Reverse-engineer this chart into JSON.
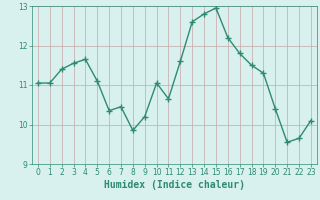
{
  "x": [
    0,
    1,
    2,
    3,
    4,
    5,
    6,
    7,
    8,
    9,
    10,
    11,
    12,
    13,
    14,
    15,
    16,
    17,
    18,
    19,
    20,
    21,
    22,
    23
  ],
  "y": [
    11.05,
    11.05,
    11.4,
    11.55,
    11.65,
    11.1,
    10.35,
    10.45,
    9.85,
    10.2,
    11.05,
    10.65,
    11.6,
    12.6,
    12.8,
    12.95,
    12.2,
    11.8,
    11.5,
    11.3,
    10.4,
    9.55,
    9.65,
    10.1
  ],
  "line_color": "#2e8b72",
  "marker": "+",
  "marker_size": 4.0,
  "line_width": 1.0,
  "xlabel": "Humidex (Indice chaleur)",
  "xlabel_fontsize": 7,
  "xlabel_color": "#2e8b72",
  "xlabel_bold": true,
  "ylim": [
    9,
    13
  ],
  "xlim": [
    -0.5,
    23.5
  ],
  "yticks": [
    9,
    10,
    11,
    12,
    13
  ],
  "xticks": [
    0,
    1,
    2,
    3,
    4,
    5,
    6,
    7,
    8,
    9,
    10,
    11,
    12,
    13,
    14,
    15,
    16,
    17,
    18,
    19,
    20,
    21,
    22,
    23
  ],
  "grid_color_h": "#c8a8a8",
  "grid_color_v": "#c8a8a8",
  "bg_color": "#d8f0ee",
  "tick_fontsize": 5.5,
  "tick_color": "#2e8b72",
  "marker_edge_width": 1.0
}
